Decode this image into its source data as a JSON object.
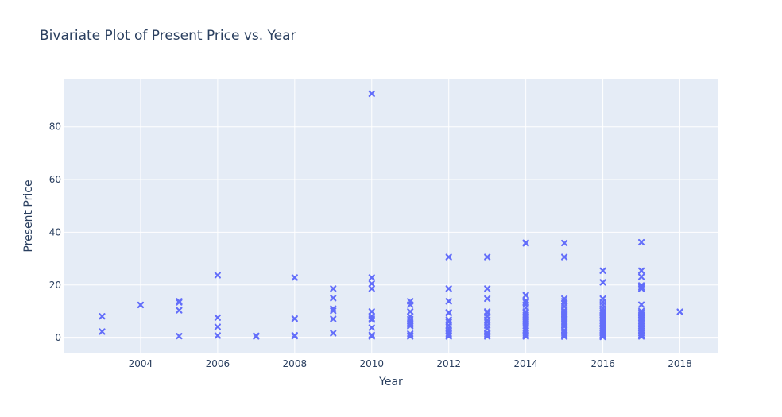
{
  "chart_data": {
    "type": "scatter",
    "title": "Bivariate Plot of Present Price vs. Year",
    "xlabel": "Year",
    "ylabel": "Present Price",
    "xlim": [
      2002.0,
      2019.0
    ],
    "ylim": [
      -6,
      98
    ],
    "xticks": [
      2004,
      2006,
      2008,
      2010,
      2012,
      2014,
      2016,
      2018
    ],
    "yticks": [
      0,
      20,
      40,
      60,
      80
    ],
    "grid": true,
    "legend": "none",
    "marker": "x",
    "colors": {
      "marker": "#636efa",
      "plot_bg": "#e5ecf6",
      "grid": "#ffffff",
      "text": "#2a3f5f"
    },
    "points": [
      [
        2003,
        8.1
      ],
      [
        2003,
        2.3
      ],
      [
        2004,
        12.4
      ],
      [
        2005,
        13.8
      ],
      [
        2005,
        13.4
      ],
      [
        2005,
        10.4
      ],
      [
        2005,
        0.6
      ],
      [
        2006,
        23.7
      ],
      [
        2006,
        7.6
      ],
      [
        2006,
        4.1
      ],
      [
        2006,
        0.8
      ],
      [
        2007,
        0.7
      ],
      [
        2007,
        0.5
      ],
      [
        2008,
        22.8
      ],
      [
        2008,
        7.2
      ],
      [
        2008,
        0.9
      ],
      [
        2008,
        0.6
      ],
      [
        2009,
        18.6
      ],
      [
        2009,
        15.0
      ],
      [
        2009,
        11.0
      ],
      [
        2009,
        10.2
      ],
      [
        2009,
        7.1
      ],
      [
        2009,
        1.7
      ],
      [
        2010,
        92.6
      ],
      [
        2010,
        22.8
      ],
      [
        2010,
        20.5
      ],
      [
        2010,
        18.6
      ],
      [
        2010,
        9.9
      ],
      [
        2010,
        8.2
      ],
      [
        2010,
        7.2
      ],
      [
        2010,
        6.8
      ],
      [
        2010,
        3.8
      ],
      [
        2010,
        1.0
      ],
      [
        2010,
        0.5
      ],
      [
        2011,
        13.8
      ],
      [
        2011,
        12.5
      ],
      [
        2011,
        9.9
      ],
      [
        2011,
        8.1
      ],
      [
        2011,
        7.0
      ],
      [
        2011,
        6.1
      ],
      [
        2011,
        5.5
      ],
      [
        2011,
        4.9
      ],
      [
        2011,
        4.4
      ],
      [
        2011,
        1.5
      ],
      [
        2011,
        0.8
      ],
      [
        2011,
        0.5
      ],
      [
        2012,
        30.6
      ],
      [
        2012,
        18.6
      ],
      [
        2012,
        13.8
      ],
      [
        2012,
        9.6
      ],
      [
        2012,
        9.4
      ],
      [
        2012,
        6.8
      ],
      [
        2012,
        5.9
      ],
      [
        2012,
        4.6
      ],
      [
        2012,
        3.5
      ],
      [
        2012,
        2.5
      ],
      [
        2012,
        1.5
      ],
      [
        2012,
        0.9
      ],
      [
        2012,
        0.5
      ],
      [
        2013,
        30.6
      ],
      [
        2013,
        18.6
      ],
      [
        2013,
        14.8
      ],
      [
        2013,
        9.9
      ],
      [
        2013,
        9.4
      ],
      [
        2013,
        8.1
      ],
      [
        2013,
        6.8
      ],
      [
        2013,
        5.8
      ],
      [
        2013,
        4.6
      ],
      [
        2013,
        3.5
      ],
      [
        2013,
        1.9
      ],
      [
        2013,
        1.3
      ],
      [
        2013,
        0.8
      ],
      [
        2013,
        0.5
      ],
      [
        2014,
        36.0
      ],
      [
        2014,
        35.8
      ],
      [
        2014,
        16.1
      ],
      [
        2014,
        14.0
      ],
      [
        2014,
        13.4
      ],
      [
        2014,
        12.5
      ],
      [
        2014,
        11.3
      ],
      [
        2014,
        9.9
      ],
      [
        2014,
        9.4
      ],
      [
        2014,
        8.6
      ],
      [
        2014,
        8.0
      ],
      [
        2014,
        7.6
      ],
      [
        2014,
        7.0
      ],
      [
        2014,
        6.4
      ],
      [
        2014,
        5.8
      ],
      [
        2014,
        5.2
      ],
      [
        2014,
        4.4
      ],
      [
        2014,
        3.6
      ],
      [
        2014,
        2.7
      ],
      [
        2014,
        1.8
      ],
      [
        2014,
        1.2
      ],
      [
        2014,
        0.8
      ],
      [
        2014,
        0.5
      ],
      [
        2015,
        35.9
      ],
      [
        2015,
        30.6
      ],
      [
        2015,
        14.8
      ],
      [
        2015,
        13.8
      ],
      [
        2015,
        13.0
      ],
      [
        2015,
        11.8
      ],
      [
        2015,
        10.4
      ],
      [
        2015,
        9.9
      ],
      [
        2015,
        9.4
      ],
      [
        2015,
        8.9
      ],
      [
        2015,
        8.4
      ],
      [
        2015,
        7.8
      ],
      [
        2015,
        7.2
      ],
      [
        2015,
        6.8
      ],
      [
        2015,
        6.1
      ],
      [
        2015,
        5.5
      ],
      [
        2015,
        4.9
      ],
      [
        2015,
        4.2
      ],
      [
        2015,
        2.8
      ],
      [
        2015,
        1.8
      ],
      [
        2015,
        1.2
      ],
      [
        2015,
        0.8
      ],
      [
        2015,
        0.4
      ],
      [
        2016,
        25.4
      ],
      [
        2016,
        21.0
      ],
      [
        2016,
        14.8
      ],
      [
        2016,
        13.6
      ],
      [
        2016,
        12.4
      ],
      [
        2016,
        11.1
      ],
      [
        2016,
        10.1
      ],
      [
        2016,
        9.4
      ],
      [
        2016,
        8.6
      ],
      [
        2016,
        8.0
      ],
      [
        2016,
        7.4
      ],
      [
        2016,
        6.8
      ],
      [
        2016,
        6.2
      ],
      [
        2016,
        5.6
      ],
      [
        2016,
        5.0
      ],
      [
        2016,
        4.4
      ],
      [
        2016,
        3.5
      ],
      [
        2016,
        2.5
      ],
      [
        2016,
        1.7
      ],
      [
        2016,
        1.1
      ],
      [
        2016,
        0.6
      ],
      [
        2016,
        0.3
      ],
      [
        2017,
        36.2
      ],
      [
        2017,
        25.4
      ],
      [
        2017,
        23.1
      ],
      [
        2017,
        19.8
      ],
      [
        2017,
        19.1
      ],
      [
        2017,
        18.6
      ],
      [
        2017,
        12.5
      ],
      [
        2017,
        10.0
      ],
      [
        2017,
        9.4
      ],
      [
        2017,
        8.7
      ],
      [
        2017,
        8.1
      ],
      [
        2017,
        7.4
      ],
      [
        2017,
        6.8
      ],
      [
        2017,
        6.1
      ],
      [
        2017,
        5.5
      ],
      [
        2017,
        4.9
      ],
      [
        2017,
        4.3
      ],
      [
        2017,
        3.4
      ],
      [
        2017,
        2.5
      ],
      [
        2017,
        1.7
      ],
      [
        2017,
        1.0
      ],
      [
        2017,
        0.5
      ],
      [
        2018,
        9.8
      ]
    ]
  }
}
